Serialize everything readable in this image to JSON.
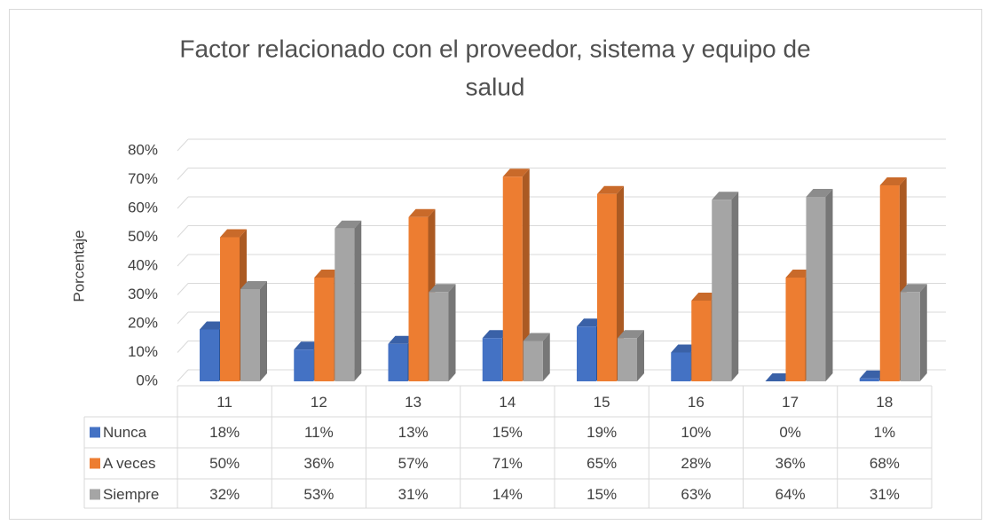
{
  "chart_data": {
    "type": "bar3d",
    "title_lines": [
      "Factor relacionado con el proveedor, sistema y equipo de",
      "salud"
    ],
    "y_label": "Porcentaje",
    "categories": [
      "11",
      "12",
      "13",
      "14",
      "15",
      "16",
      "17",
      "18"
    ],
    "series": [
      {
        "name": "Nunca",
        "color": "#4472c4",
        "values": [
          18,
          11,
          13,
          15,
          19,
          10,
          0,
          1
        ],
        "value_labels": [
          "18%",
          "11%",
          "13%",
          "15%",
          "19%",
          "10%",
          "0%",
          "1%"
        ]
      },
      {
        "name": "A veces",
        "color": "#ed7d31",
        "values": [
          50,
          36,
          57,
          71,
          65,
          28,
          36,
          68
        ],
        "value_labels": [
          "50%",
          "36%",
          "57%",
          "71%",
          "65%",
          "28%",
          "36%",
          "68%"
        ]
      },
      {
        "name": "Siempre",
        "color": "#a5a5a5",
        "values": [
          32,
          53,
          31,
          14,
          15,
          63,
          64,
          31
        ],
        "value_labels": [
          "32%",
          "53%",
          "31%",
          "14%",
          "15%",
          "63%",
          "64%",
          "31%"
        ]
      }
    ],
    "ylim": [
      0,
      80
    ],
    "yticks": [
      {
        "value": 0,
        "label": "0%"
      },
      {
        "value": 10,
        "label": "10%"
      },
      {
        "value": 20,
        "label": "20%"
      },
      {
        "value": 30,
        "label": "30%"
      },
      {
        "value": 40,
        "label": "40%"
      },
      {
        "value": 50,
        "label": "50%"
      },
      {
        "value": 60,
        "label": "60%"
      },
      {
        "value": 70,
        "label": "70%"
      },
      {
        "value": 80,
        "label": "80%"
      }
    ],
    "grid": true
  }
}
